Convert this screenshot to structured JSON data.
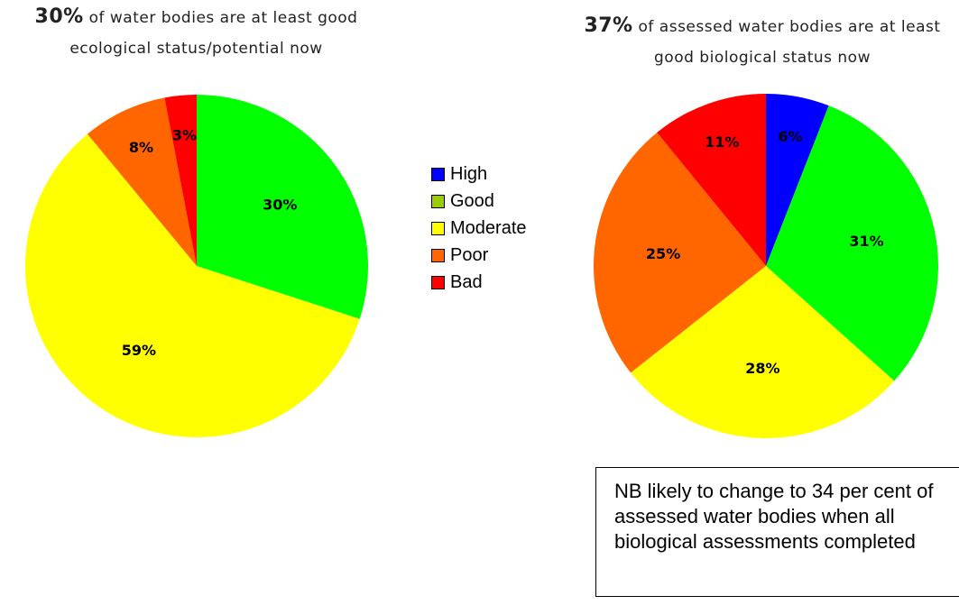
{
  "chart_data": [
    {
      "type": "pie",
      "title_highlight": "30%",
      "title": "of water bodies are at least good ecological status/potential now",
      "categories": [
        "Good",
        "Moderate",
        "Poor",
        "Bad"
      ],
      "values": [
        30,
        59,
        8,
        3
      ],
      "value_labels": [
        "30%",
        "59%",
        "8%",
        "3%"
      ],
      "colors": [
        "#00ff00",
        "#ffff00",
        "#ff6600",
        "#ff0000"
      ]
    },
    {
      "type": "pie",
      "title_highlight": "37%",
      "title": "of assessed water bodies are at least good biological status now",
      "categories": [
        "High",
        "Good",
        "Moderate",
        "Poor",
        "Bad"
      ],
      "values": [
        6,
        31,
        28,
        25,
        11
      ],
      "value_labels": [
        "6%",
        "31%",
        "28%",
        "25%",
        "11%"
      ],
      "colors": [
        "#0000ff",
        "#00ff00",
        "#ffff00",
        "#ff6600",
        "#ff0000"
      ]
    }
  ],
  "legend": {
    "entries": [
      {
        "name": "High",
        "color": "#0000ff"
      },
      {
        "name": "Good",
        "color": "#99cc00"
      },
      {
        "name": "Moderate",
        "color": "#ffff00"
      },
      {
        "name": "Poor",
        "color": "#ff6600"
      },
      {
        "name": "Bad",
        "color": "#ff0000"
      }
    ]
  },
  "note": "NB likely to change to 34 per cent of assessed water bodies when all biological assessments completed"
}
